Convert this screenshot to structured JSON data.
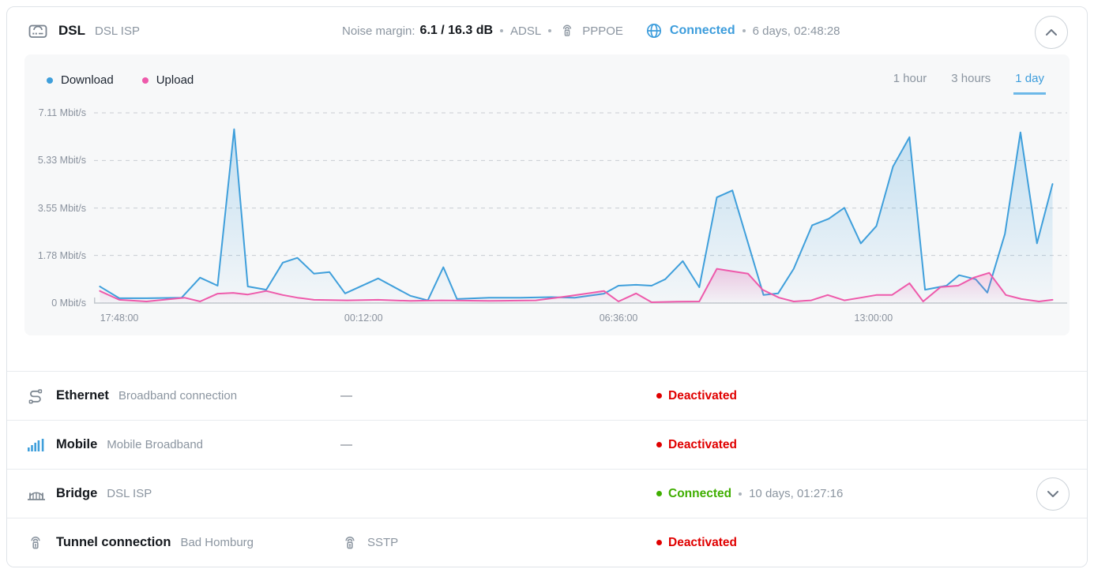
{
  "colors": {
    "accent_blue": "#3d9ddc",
    "download": "#3f9fdb",
    "upload": "#ee5aab",
    "status_red": "#e00000",
    "status_green": "#3fae00",
    "text_gray": "#8b95a0",
    "text_dark": "#14181d"
  },
  "header": {
    "title": "DSL",
    "subtitle": "DSL ISP",
    "noise_margin_label": "Noise margin:",
    "noise_margin_value": "6.1 / 16.3 dB",
    "line_standard": "ADSL",
    "protocol": "PPPOE",
    "status": "Connected",
    "uptime": "6 days, 02:48:28"
  },
  "chart": {
    "legend": [
      {
        "label": "Download",
        "color": "#3f9fdb"
      },
      {
        "label": "Upload",
        "color": "#ee5aab"
      }
    ],
    "ranges": [
      {
        "label": "1 hour",
        "active": false
      },
      {
        "label": "3 hours",
        "active": false
      },
      {
        "label": "1 day",
        "active": true
      }
    ]
  },
  "chart_data": {
    "type": "area",
    "title": "DSL throughput over 1 day",
    "ylabel": "Mbit/s",
    "ylim": [
      0,
      7.4
    ],
    "grid": true,
    "legend_position": "top-left",
    "y_ticks": [
      "7.11 Mbit/s",
      "5.33 Mbit/s",
      "3.55 Mbit/s",
      "1.78 Mbit/s",
      "0 Mbit/s"
    ],
    "y_tick_values": [
      7.11,
      5.33,
      3.55,
      1.78,
      0
    ],
    "x_ticks": [
      {
        "pos": 0.026,
        "label": "17:48:00"
      },
      {
        "pos": 0.277,
        "label": "00:12:00"
      },
      {
        "pos": 0.539,
        "label": "06:36:00"
      },
      {
        "pos": 0.801,
        "label": "13:00:00"
      }
    ],
    "series": [
      {
        "name": "Download",
        "id": "download",
        "color": "#3f9fdb",
        "points": [
          [
            0.006,
            0.62
          ],
          [
            0.026,
            0.18
          ],
          [
            0.054,
            0.18
          ],
          [
            0.09,
            0.2
          ],
          [
            0.109,
            0.95
          ],
          [
            0.127,
            0.65
          ],
          [
            0.144,
            6.5
          ],
          [
            0.158,
            0.62
          ],
          [
            0.177,
            0.5
          ],
          [
            0.194,
            1.51
          ],
          [
            0.209,
            1.69
          ],
          [
            0.226,
            1.1
          ],
          [
            0.242,
            1.16
          ],
          [
            0.258,
            0.36
          ],
          [
            0.292,
            0.92
          ],
          [
            0.325,
            0.27
          ],
          [
            0.343,
            0.1
          ],
          [
            0.359,
            1.34
          ],
          [
            0.373,
            0.15
          ],
          [
            0.406,
            0.2
          ],
          [
            0.438,
            0.2
          ],
          [
            0.47,
            0.22
          ],
          [
            0.494,
            0.2
          ],
          [
            0.524,
            0.35
          ],
          [
            0.539,
            0.65
          ],
          [
            0.557,
            0.68
          ],
          [
            0.573,
            0.65
          ],
          [
            0.587,
            0.89
          ],
          [
            0.605,
            1.57
          ],
          [
            0.622,
            0.59
          ],
          [
            0.64,
            3.95
          ],
          [
            0.656,
            4.21
          ],
          [
            0.688,
            0.3
          ],
          [
            0.703,
            0.36
          ],
          [
            0.719,
            1.28
          ],
          [
            0.738,
            2.91
          ],
          [
            0.755,
            3.15
          ],
          [
            0.771,
            3.56
          ],
          [
            0.788,
            2.23
          ],
          [
            0.804,
            2.88
          ],
          [
            0.821,
            5.1
          ],
          [
            0.838,
            6.2
          ],
          [
            0.854,
            0.5
          ],
          [
            0.876,
            0.65
          ],
          [
            0.889,
            1.04
          ],
          [
            0.906,
            0.89
          ],
          [
            0.918,
            0.39
          ],
          [
            0.936,
            2.58
          ],
          [
            0.952,
            6.38
          ],
          [
            0.969,
            2.23
          ],
          [
            0.985,
            4.45
          ]
        ]
      },
      {
        "name": "Upload",
        "id": "upload",
        "color": "#ee5aab",
        "points": [
          [
            0.006,
            0.45
          ],
          [
            0.026,
            0.12
          ],
          [
            0.054,
            0.06
          ],
          [
            0.093,
            0.2
          ],
          [
            0.109,
            0.06
          ],
          [
            0.127,
            0.35
          ],
          [
            0.143,
            0.38
          ],
          [
            0.158,
            0.32
          ],
          [
            0.177,
            0.45
          ],
          [
            0.194,
            0.3
          ],
          [
            0.209,
            0.2
          ],
          [
            0.226,
            0.12
          ],
          [
            0.26,
            0.1
          ],
          [
            0.292,
            0.12
          ],
          [
            0.325,
            0.08
          ],
          [
            0.357,
            0.1
          ],
          [
            0.406,
            0.08
          ],
          [
            0.454,
            0.1
          ],
          [
            0.486,
            0.25
          ],
          [
            0.511,
            0.38
          ],
          [
            0.524,
            0.45
          ],
          [
            0.539,
            0.06
          ],
          [
            0.557,
            0.36
          ],
          [
            0.573,
            0.03
          ],
          [
            0.599,
            0.05
          ],
          [
            0.622,
            0.06
          ],
          [
            0.64,
            1.28
          ],
          [
            0.656,
            1.19
          ],
          [
            0.672,
            1.1
          ],
          [
            0.687,
            0.5
          ],
          [
            0.704,
            0.2
          ],
          [
            0.719,
            0.06
          ],
          [
            0.737,
            0.1
          ],
          [
            0.754,
            0.3
          ],
          [
            0.771,
            0.1
          ],
          [
            0.788,
            0.2
          ],
          [
            0.804,
            0.3
          ],
          [
            0.82,
            0.3
          ],
          [
            0.838,
            0.74
          ],
          [
            0.852,
            0.06
          ],
          [
            0.87,
            0.6
          ],
          [
            0.888,
            0.65
          ],
          [
            0.904,
            0.95
          ],
          [
            0.92,
            1.13
          ],
          [
            0.937,
            0.3
          ],
          [
            0.953,
            0.15
          ],
          [
            0.971,
            0.06
          ],
          [
            0.985,
            0.12
          ]
        ]
      }
    ]
  },
  "rows": [
    {
      "id": "ethernet",
      "icon": "ethernet-icon",
      "title": "Ethernet",
      "subtitle": "Broadband connection",
      "middle": {
        "type": "dash",
        "text": "—"
      },
      "status": {
        "text": "Deactivated",
        "kind": "red"
      },
      "uptime": "",
      "expandable": false
    },
    {
      "id": "mobile",
      "icon": "mobile-signal-icon",
      "title": "Mobile",
      "subtitle": "Mobile Broadband",
      "middle": {
        "type": "dash",
        "text": "—"
      },
      "status": {
        "text": "Deactivated",
        "kind": "red"
      },
      "uptime": "",
      "expandable": false
    },
    {
      "id": "bridge",
      "icon": "bridge-icon",
      "title": "Bridge",
      "subtitle": "DSL ISP",
      "middle": {
        "type": "none",
        "text": ""
      },
      "status": {
        "text": "Connected",
        "kind": "green"
      },
      "uptime": "10 days, 01:27:16",
      "expandable": true
    },
    {
      "id": "tunnel-connection",
      "icon": "tunnel-lock-icon",
      "title": "Tunnel connection",
      "subtitle": "Bad Homburg",
      "middle": {
        "type": "protocol",
        "text": "SSTP"
      },
      "status": {
        "text": "Deactivated",
        "kind": "red"
      },
      "uptime": "",
      "expandable": false
    }
  ]
}
